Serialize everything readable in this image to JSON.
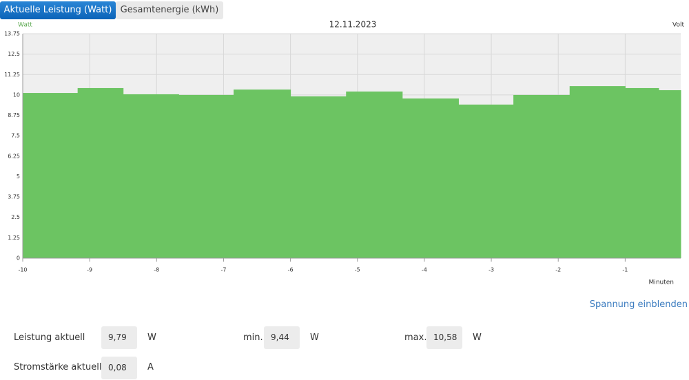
{
  "tabs": [
    {
      "label": "Aktuelle Leistung (Watt)",
      "active": true
    },
    {
      "label": "Gesamtenergie (kWh)",
      "active": false
    }
  ],
  "chart_data": {
    "type": "step-area",
    "title": "12.11.2023",
    "y_label": "Watt",
    "y2_label": "Volt",
    "x_label": "Minuten",
    "x": [
      -10,
      -9.18,
      -8.5,
      -7.67,
      -6.85,
      -6.0,
      -5.17,
      -4.33,
      -3.49,
      -2.67,
      -1.83,
      -1.0,
      -0.5
    ],
    "values": [
      10.12,
      10.42,
      10.04,
      10.0,
      10.33,
      9.91,
      10.21,
      9.78,
      9.41,
      10.0,
      10.54,
      10.42,
      10.29
    ],
    "color": "#6cc462",
    "xlim": [
      -10,
      -0.17
    ],
    "ylim": [
      0,
      13.75
    ],
    "xticks": [
      -10,
      -9,
      -8,
      -7,
      -6,
      -5,
      -4,
      -3,
      -2,
      -1
    ],
    "yticks": [
      0,
      1.25,
      2.5,
      3.75,
      5,
      6.25,
      7.5,
      8.75,
      10,
      11.25,
      12.5,
      13.75
    ],
    "grid": true
  },
  "link": "Spannung einblenden",
  "stats": [
    {
      "label": "Leistung aktuell",
      "value": "9,79",
      "unit": "W"
    },
    {
      "label": "min.",
      "value": "9,44",
      "unit": "W"
    },
    {
      "label": "max.",
      "value": "10,58",
      "unit": "W"
    },
    {
      "label": "Stromstärke aktuell",
      "value": "0,08",
      "unit": "A"
    }
  ]
}
